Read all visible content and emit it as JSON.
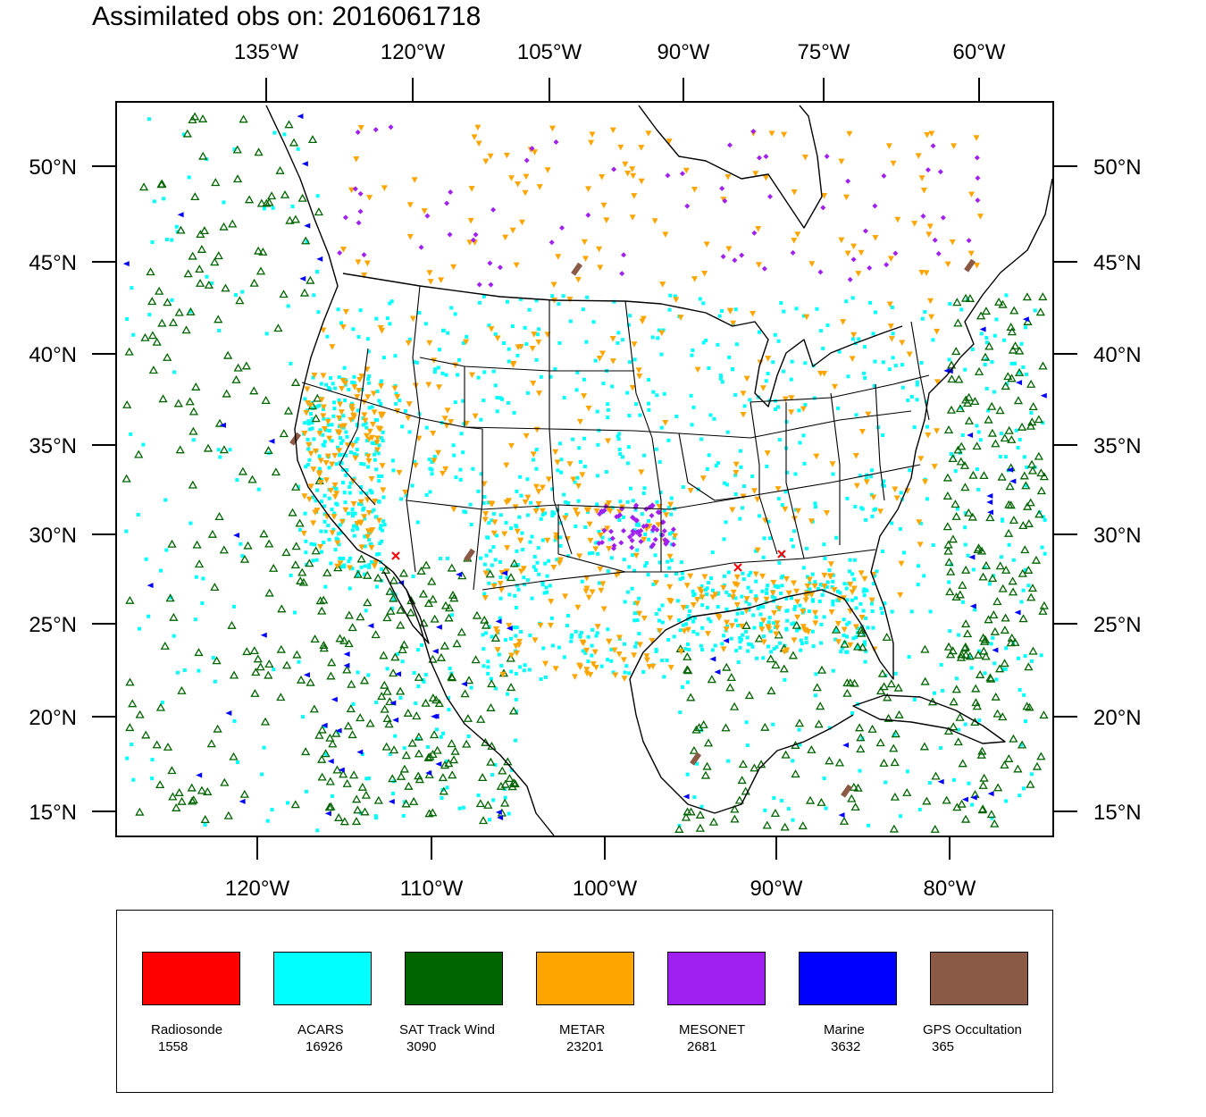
{
  "title": "Assimilated obs on: 2016061718",
  "map": {
    "top_lon_labels": [
      "135°W",
      "120°W",
      "105°W",
      "90°W",
      "75°W",
      "60°W"
    ],
    "bottom_lon_labels": [
      "120°W",
      "110°W",
      "100°W",
      "90°W",
      "80°W"
    ],
    "left_lat_labels": [
      "50°N",
      "45°N",
      "40°N",
      "35°N",
      "30°N",
      "25°N",
      "20°N",
      "15°N"
    ],
    "right_lat_labels": [
      "50°N",
      "45°N",
      "40°N",
      "35°N",
      "30°N",
      "25°N",
      "20°N",
      "15°N"
    ]
  },
  "legend": {
    "items": [
      {
        "name": "Radiosonde",
        "count": "1558",
        "color": "#ff0000",
        "icon": "x-marker-icon"
      },
      {
        "name": "ACARS",
        "count": "16926",
        "color": "#00ffff",
        "icon": "square-marker-icon"
      },
      {
        "name": "SAT Track Wind",
        "count": "3090",
        "color": "#006400",
        "icon": "triangle-up-marker-icon"
      },
      {
        "name": "METAR",
        "count": "23201",
        "color": "#ffa500",
        "icon": "triangle-down-marker-icon"
      },
      {
        "name": "MESONET",
        "count": "2681",
        "color": "#a020f0",
        "icon": "diamond-marker-icon"
      },
      {
        "name": "Marine",
        "count": "3632",
        "color": "#0000ff",
        "icon": "triangle-left-marker-icon"
      },
      {
        "name": "GPS Occultation",
        "count": "365",
        "color": "#8b5a46",
        "icon": "bar-marker-icon"
      }
    ]
  }
}
